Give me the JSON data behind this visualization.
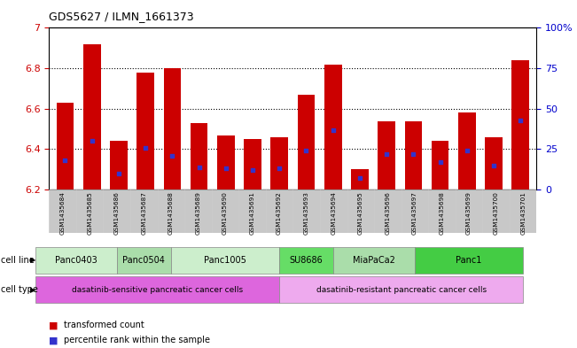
{
  "title": "GDS5627 / ILMN_1661373",
  "samples": [
    "GSM1435684",
    "GSM1435685",
    "GSM1435686",
    "GSM1435687",
    "GSM1435688",
    "GSM1435689",
    "GSM1435690",
    "GSM1435691",
    "GSM1435692",
    "GSM1435693",
    "GSM1435694",
    "GSM1435695",
    "GSM1435696",
    "GSM1435697",
    "GSM1435698",
    "GSM1435699",
    "GSM1435700",
    "GSM1435701"
  ],
  "transformed_counts": [
    6.63,
    6.92,
    6.44,
    6.78,
    6.8,
    6.53,
    6.47,
    6.45,
    6.46,
    6.67,
    6.82,
    6.3,
    6.54,
    6.54,
    6.44,
    6.58,
    6.46,
    6.84
  ],
  "percentile_ranks": [
    18,
    30,
    10,
    26,
    21,
    14,
    13,
    12,
    13,
    24,
    37,
    7,
    22,
    22,
    17,
    24,
    15,
    43
  ],
  "ylim_left": [
    6.2,
    7.0
  ],
  "ylim_right": [
    0,
    100
  ],
  "yticks_left": [
    6.2,
    6.4,
    6.6,
    6.8,
    7.0
  ],
  "ytick_labels_left": [
    "6.2",
    "6.4",
    "6.6",
    "6.8",
    "7"
  ],
  "yticks_right": [
    0,
    25,
    50,
    75,
    100
  ],
  "ytick_labels_right": [
    "0",
    "25",
    "50",
    "75",
    "100%"
  ],
  "bar_color": "#cc0000",
  "percentile_color": "#3333cc",
  "cell_line_groups": [
    {
      "label": "Panc0403",
      "cols": [
        0,
        1,
        2
      ],
      "color": "#cceecc"
    },
    {
      "label": "Panc0504",
      "cols": [
        3,
        4
      ],
      "color": "#aaddaa"
    },
    {
      "label": "Panc1005",
      "cols": [
        5,
        6,
        7,
        8
      ],
      "color": "#cceecc"
    },
    {
      "label": "SU8686",
      "cols": [
        9,
        10
      ],
      "color": "#66dd66"
    },
    {
      "label": "MiaPaCa2",
      "cols": [
        11,
        12,
        13
      ],
      "color": "#aaddaa"
    },
    {
      "label": "Panc1",
      "cols": [
        14,
        15,
        16,
        17
      ],
      "color": "#44cc44"
    }
  ],
  "cell_types": [
    {
      "label": "dasatinib-sensitive pancreatic cancer cells",
      "cols": [
        0,
        8
      ],
      "color": "#dd66dd"
    },
    {
      "label": "dasatinib-resistant pancreatic cancer cells",
      "cols": [
        9,
        17
      ],
      "color": "#eeaaee"
    }
  ],
  "xlabel_color": "#cc0000",
  "ylabel_right_color": "#0000cc",
  "grid_dotted_at": [
    6.4,
    6.6,
    6.8
  ]
}
